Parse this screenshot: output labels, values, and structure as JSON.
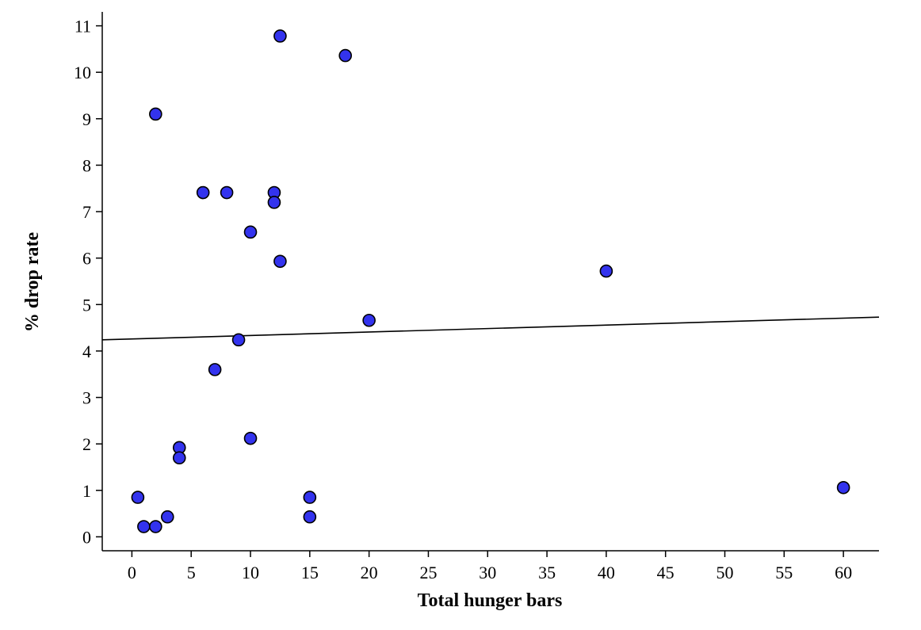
{
  "chart_data": {
    "type": "scatter",
    "title": "",
    "xlabel": "Total hunger bars",
    "ylabel": "% drop rate",
    "xlim": [
      -2.5,
      63
    ],
    "ylim": [
      -0.3,
      11.3
    ],
    "xticks": [
      0,
      5,
      10,
      15,
      20,
      25,
      30,
      35,
      40,
      45,
      50,
      55,
      60
    ],
    "yticks": [
      0,
      1,
      2,
      3,
      4,
      5,
      6,
      7,
      8,
      9,
      10,
      11
    ],
    "grid": false,
    "legend": "none",
    "point_color": "#3333ee",
    "point_edge_color": "#000000",
    "points": [
      {
        "x": 0.5,
        "y": 0.85
      },
      {
        "x": 1,
        "y": 0.22
      },
      {
        "x": 2,
        "y": 0.22
      },
      {
        "x": 3,
        "y": 0.43
      },
      {
        "x": 2,
        "y": 9.1
      },
      {
        "x": 4,
        "y": 1.92
      },
      {
        "x": 4,
        "y": 1.7
      },
      {
        "x": 6,
        "y": 7.41
      },
      {
        "x": 7,
        "y": 3.6
      },
      {
        "x": 8,
        "y": 7.41
      },
      {
        "x": 9,
        "y": 4.24
      },
      {
        "x": 10,
        "y": 6.56
      },
      {
        "x": 10,
        "y": 2.12
      },
      {
        "x": 12,
        "y": 7.41
      },
      {
        "x": 12,
        "y": 7.2
      },
      {
        "x": 12.5,
        "y": 10.78
      },
      {
        "x": 12.5,
        "y": 5.93
      },
      {
        "x": 15,
        "y": 0.85
      },
      {
        "x": 15,
        "y": 0.43
      },
      {
        "x": 18,
        "y": 10.36
      },
      {
        "x": 20,
        "y": 4.66
      },
      {
        "x": 40,
        "y": 5.72
      },
      {
        "x": 60,
        "y": 1.06
      }
    ],
    "trendline": {
      "x": [
        -2.5,
        63
      ],
      "y": [
        4.24,
        4.73
      ],
      "color": "#000000"
    }
  }
}
